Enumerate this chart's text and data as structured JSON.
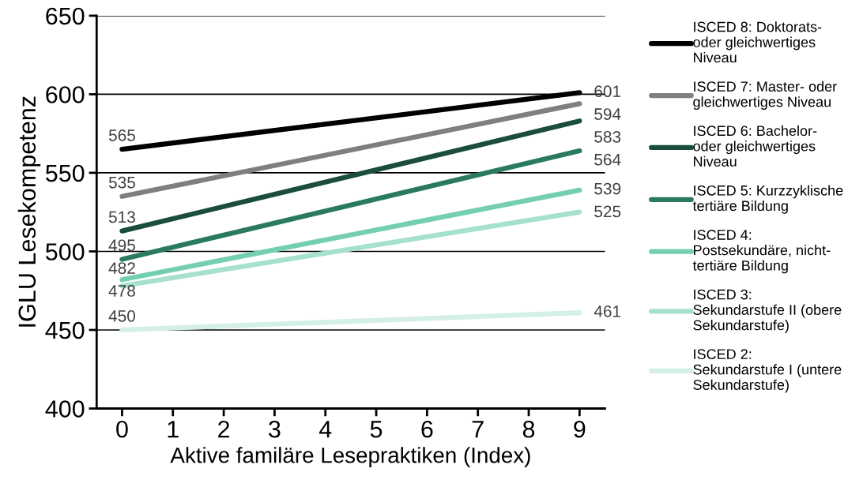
{
  "chart_data": {
    "type": "line",
    "xlabel": "Aktive familäre Lesepraktiken (Index)",
    "ylabel": "IGLU Lesekompetenz",
    "x": [
      0,
      9
    ],
    "xlim": [
      -0.5,
      9.5
    ],
    "xticks": [
      0,
      1,
      2,
      3,
      4,
      5,
      6,
      7,
      8,
      9
    ],
    "ylim": [
      400,
      650
    ],
    "yticks": [
      400,
      450,
      500,
      550,
      600,
      650
    ],
    "grid": "y",
    "legend": "right",
    "data_labels": true,
    "marker": "none",
    "line_style": "solid",
    "series": [
      {
        "name": "ISCED 8: Doktorats-\noder gleichwertiges\nNiveau",
        "color": "#000000",
        "values": [
          565,
          601
        ]
      },
      {
        "name": "ISCED 7: Master- oder\ngleichwertiges Niveau",
        "color": "#7f7f7f",
        "values": [
          535,
          594
        ]
      },
      {
        "name": "ISCED 6: Bachelor-\noder gleichwertiges\nNiveau",
        "color": "#1b4d3e",
        "values": [
          513,
          583
        ]
      },
      {
        "name": "ISCED 5: Kurzzyklische\ntertiäre Bildung",
        "color": "#2a7a62",
        "values": [
          495,
          564
        ]
      },
      {
        "name": "ISCED 4:\nPostsekundäre, nicht-\ntertiäre Bildung",
        "color": "#74ceb2",
        "values": [
          482,
          539
        ]
      },
      {
        "name": "ISCED 3:\nSekundarstufe II (obere\nSekundarstufe)",
        "color": "#a6e0cf",
        "values": [
          478,
          525
        ]
      },
      {
        "name": "ISCED 2:\nSekundarstufe I (untere\nSekundarstufe)",
        "color": "#d4efe6",
        "values": [
          450,
          461
        ]
      }
    ]
  }
}
